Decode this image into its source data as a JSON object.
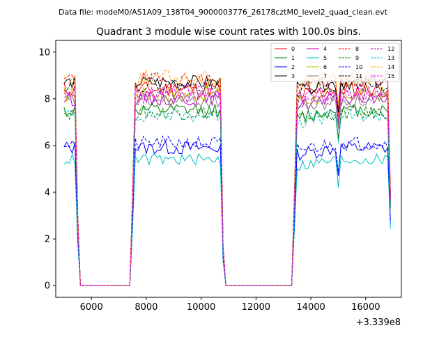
{
  "suptitle": "Data file: modeM0/AS1A09_138T04_9000003776_26178cztM0_level2_quad_clean.evt",
  "chart_data": {
    "type": "line",
    "title": "Quadrant 3 module wise count rates with 100.0s bins.",
    "xlabel": "",
    "ylabel": "",
    "x_offset_label": "+3.339e8",
    "xlim": [
      4700,
      17300
    ],
    "ylim": [
      -0.5,
      10.5
    ],
    "xticks": [
      6000,
      8000,
      10000,
      12000,
      14000,
      16000
    ],
    "yticks": [
      0,
      2,
      4,
      6,
      8,
      10
    ],
    "grid": false,
    "legend_position": "top-right",
    "segments": [
      [
        5000,
        5500
      ],
      [
        7500,
        10800
      ],
      [
        13400,
        16900
      ]
    ],
    "gap_level": 0,
    "series": [
      {
        "name": "0",
        "color": "#ff0000",
        "style": "solid",
        "base": 8.4,
        "noise": 0.35,
        "seed": 11
      },
      {
        "name": "1",
        "color": "#008000",
        "style": "solid",
        "base": 7.5,
        "noise": 0.3,
        "seed": 12
      },
      {
        "name": "2",
        "color": "#0000ff",
        "style": "solid",
        "base": 5.9,
        "noise": 0.3,
        "seed": 13
      },
      {
        "name": "3",
        "color": "#000000",
        "style": "solid",
        "base": 8.7,
        "noise": 0.3,
        "seed": 14
      },
      {
        "name": "4",
        "color": "#bf00bf",
        "style": "solid",
        "base": 8.0,
        "noise": 0.3,
        "seed": 15
      },
      {
        "name": "5",
        "color": "#00bfbf",
        "style": "solid",
        "base": 5.4,
        "noise": 0.25,
        "seed": 16
      },
      {
        "name": "6",
        "color": "#bfbf00",
        "style": "solid",
        "base": 8.2,
        "noise": 0.35,
        "seed": 17
      },
      {
        "name": "7",
        "color": "#808080",
        "style": "solid",
        "base": 7.9,
        "noise": 0.3,
        "seed": 18
      },
      {
        "name": "8",
        "color": "#ff0000",
        "style": "dashed",
        "base": 8.8,
        "noise": 0.35,
        "seed": 19
      },
      {
        "name": "9",
        "color": "#008000",
        "style": "dashed",
        "base": 7.4,
        "noise": 0.3,
        "seed": 20
      },
      {
        "name": "10",
        "color": "#0000ff",
        "style": "dashed",
        "base": 6.1,
        "noise": 0.3,
        "seed": 21
      },
      {
        "name": "11",
        "color": "#000000",
        "style": "dashed",
        "base": 8.6,
        "noise": 0.3,
        "seed": 22
      },
      {
        "name": "12",
        "color": "#bf00bf",
        "style": "dashed",
        "base": 8.1,
        "noise": 0.3,
        "seed": 23
      },
      {
        "name": "13",
        "color": "#00bfbf",
        "style": "dashed",
        "base": 7.3,
        "noise": 0.3,
        "seed": 24
      },
      {
        "name": "14",
        "color": "#ffa500",
        "style": "dashed",
        "base": 8.9,
        "noise": 0.35,
        "seed": 25
      },
      {
        "name": "15",
        "color": "#ff00ff",
        "style": "dashed",
        "base": 8.3,
        "noise": 0.3,
        "seed": 26
      }
    ]
  }
}
